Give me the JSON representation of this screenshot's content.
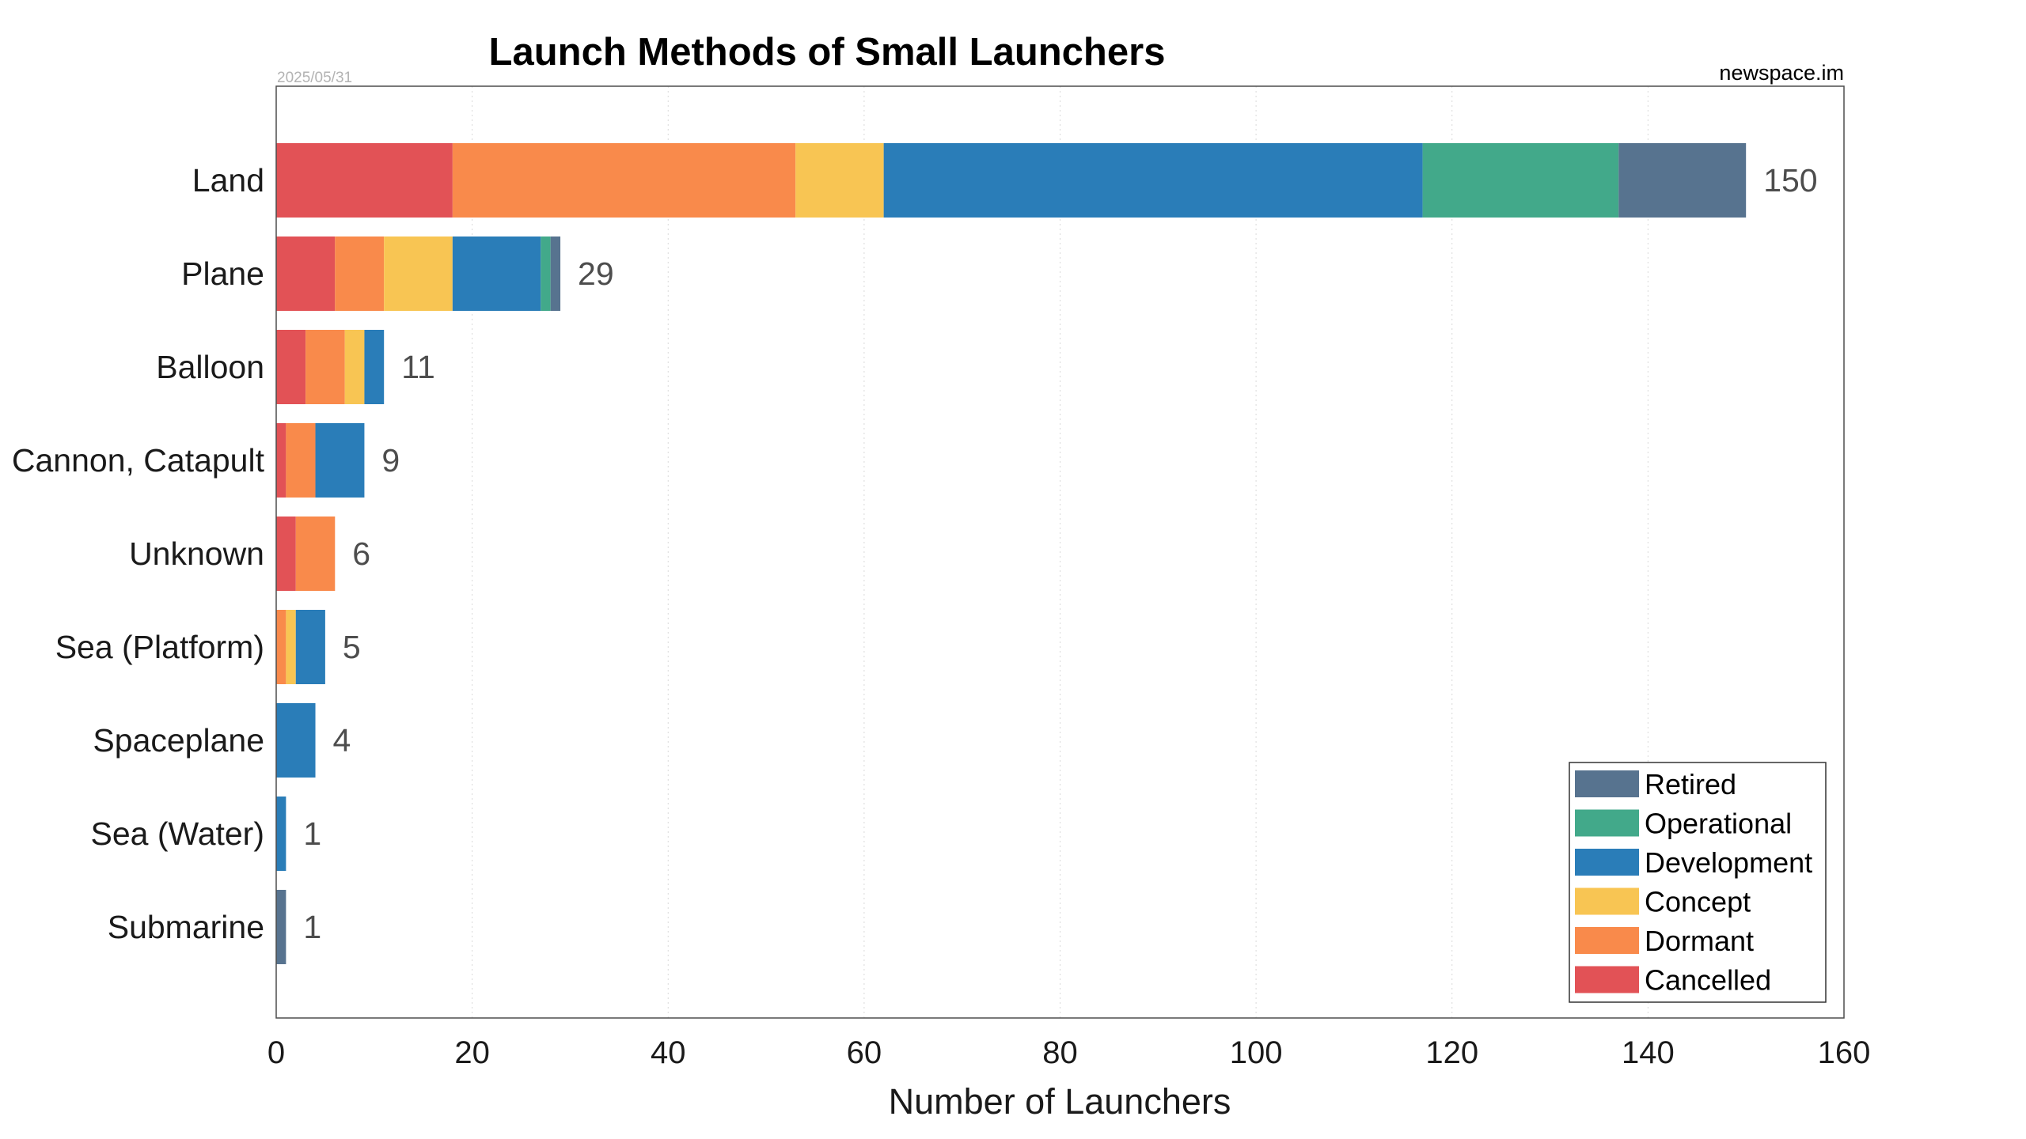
{
  "chart_data": {
    "type": "bar",
    "orientation": "horizontal",
    "stacked": true,
    "title": "Launch Methods of Small Launchers",
    "date": "2025/05/31",
    "source": "newspace.im",
    "xlabel": "Number of Launchers",
    "ylabel": "",
    "xlim": [
      0,
      160
    ],
    "xticks": [
      0,
      20,
      40,
      60,
      80,
      100,
      120,
      140,
      160
    ],
    "grid": "vertical-dotted",
    "legend_position": "bottom-right",
    "categories": [
      "Land",
      "Plane",
      "Balloon",
      "Cannon, Catapult",
      "Unknown",
      "Sea (Platform)",
      "Spaceplane",
      "Sea (Water)",
      "Submarine"
    ],
    "totals": [
      150,
      29,
      11,
      9,
      6,
      5,
      4,
      1,
      1
    ],
    "stack_order": [
      "Cancelled",
      "Dormant",
      "Concept",
      "Development",
      "Operational",
      "Retired"
    ],
    "series": [
      {
        "name": "Retired",
        "color": "#57738f",
        "values": [
          13,
          1,
          0,
          0,
          0,
          0,
          0,
          0,
          1
        ]
      },
      {
        "name": "Operational",
        "color": "#42a98a",
        "values": [
          20,
          1,
          0,
          0,
          0,
          0,
          0,
          0,
          0
        ]
      },
      {
        "name": "Development",
        "color": "#2a7db8",
        "values": [
          55,
          9,
          2,
          5,
          0,
          3,
          4,
          1,
          0
        ]
      },
      {
        "name": "Concept",
        "color": "#f8c553",
        "values": [
          9,
          7,
          2,
          0,
          0,
          1,
          0,
          0,
          0
        ]
      },
      {
        "name": "Dormant",
        "color": "#f98a4b",
        "values": [
          35,
          5,
          4,
          3,
          4,
          1,
          0,
          0,
          0
        ]
      },
      {
        "name": "Cancelled",
        "color": "#e25256",
        "values": [
          18,
          6,
          3,
          1,
          2,
          0,
          0,
          0,
          0
        ]
      }
    ]
  }
}
